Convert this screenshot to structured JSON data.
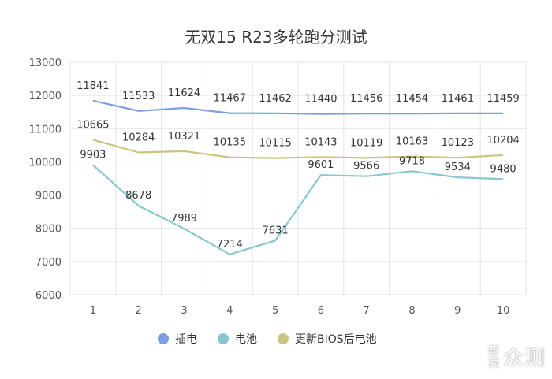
{
  "chart_data": {
    "type": "line",
    "title": "无双15 R23多轮跑分测试",
    "categories": [
      "1",
      "2",
      "3",
      "4",
      "5",
      "6",
      "7",
      "8",
      "9",
      "10"
    ],
    "ylim": [
      6000,
      13000
    ],
    "yticks": [
      6000,
      7000,
      8000,
      9000,
      10000,
      11000,
      12000,
      13000
    ],
    "grid": true,
    "legend_position": "bottom",
    "series": [
      {
        "name": "插电",
        "color": "#7c9fe0",
        "values": [
          11841,
          11533,
          11624,
          11467,
          11462,
          11440,
          11456,
          11454,
          11461,
          11459
        ]
      },
      {
        "name": "电池",
        "color": "#86c8cf",
        "values": [
          9903,
          8678,
          7989,
          7214,
          7631,
          9601,
          9566,
          9718,
          9534,
          9480
        ]
      },
      {
        "name": "更新BIOS后电池",
        "color": "#c9c67f",
        "values": [
          10665,
          10284,
          10321,
          10135,
          10115,
          10143,
          10119,
          10163,
          10123,
          10204
        ]
      }
    ]
  },
  "watermark": {
    "line1": "新",
    "line2": "浪",
    "brand": "众测"
  }
}
